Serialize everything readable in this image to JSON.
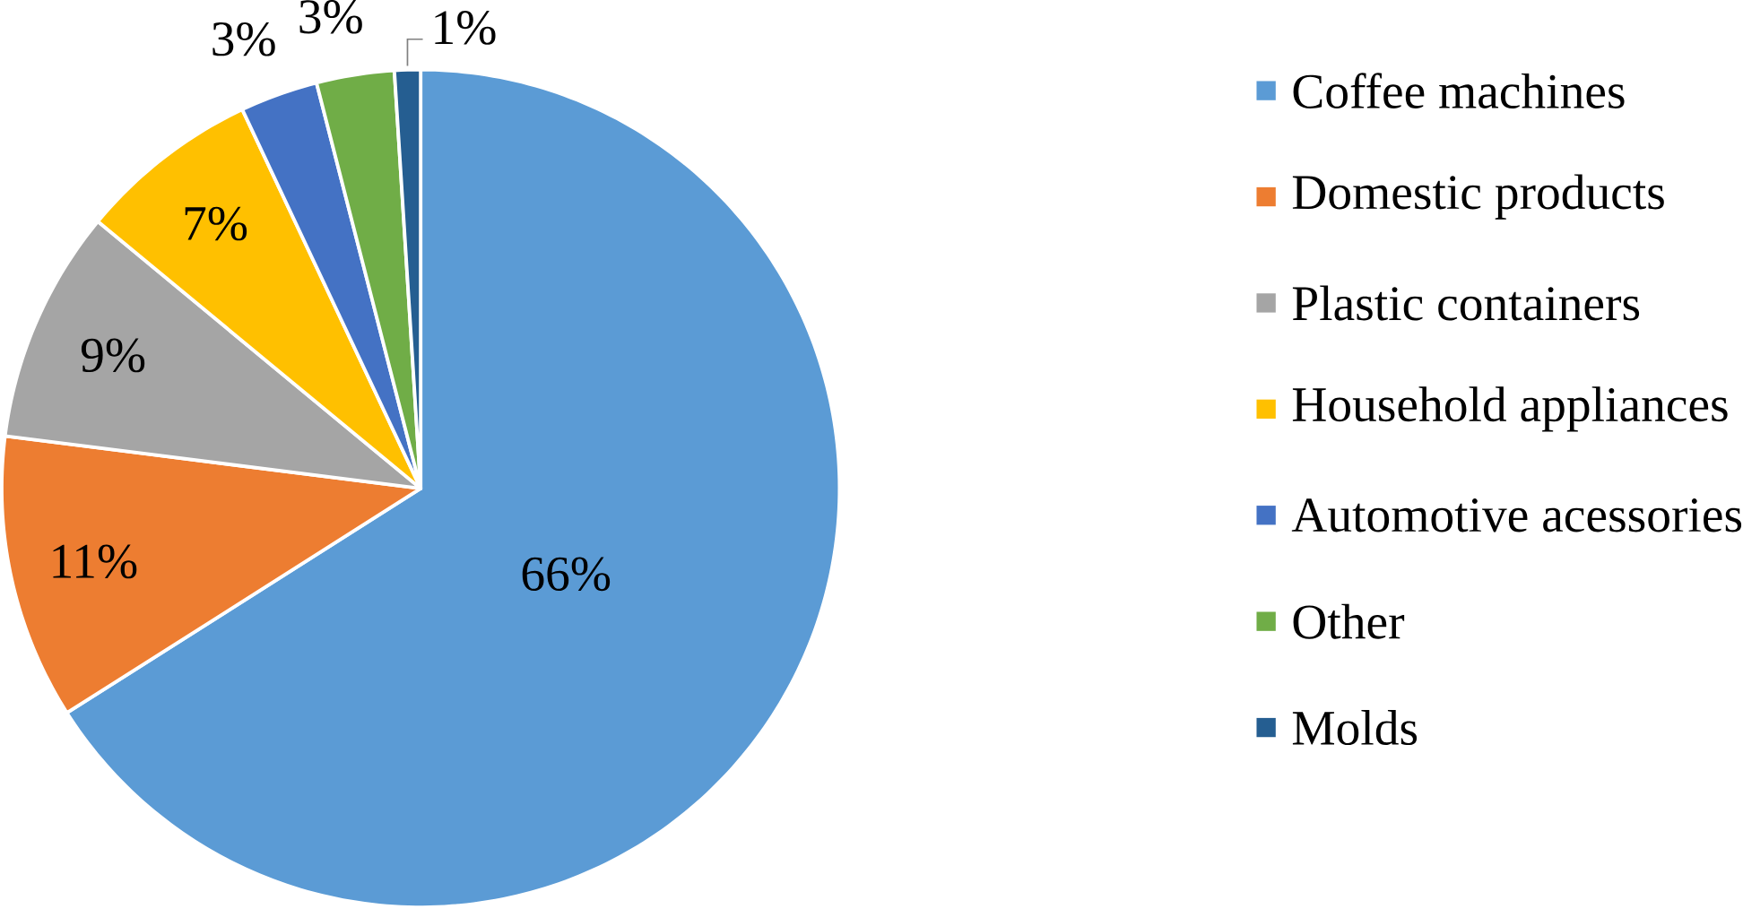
{
  "chart_data": {
    "type": "pie",
    "categories": [
      "Coffee machines",
      "Domestic products",
      "Plastic containers",
      "Household appliances",
      "Automotive acessories",
      "Other",
      "Molds"
    ],
    "values": [
      66,
      11,
      9,
      7,
      3,
      3,
      1
    ],
    "value_labels": [
      "66%",
      "11%",
      "9%",
      "7%",
      "3%",
      "3%",
      "1%"
    ],
    "colors": [
      "#5b9bd5",
      "#ed7d31",
      "#a5a5a5",
      "#ffc000",
      "#4472c4",
      "#70ad47",
      "#255e91"
    ],
    "legend": "right"
  }
}
